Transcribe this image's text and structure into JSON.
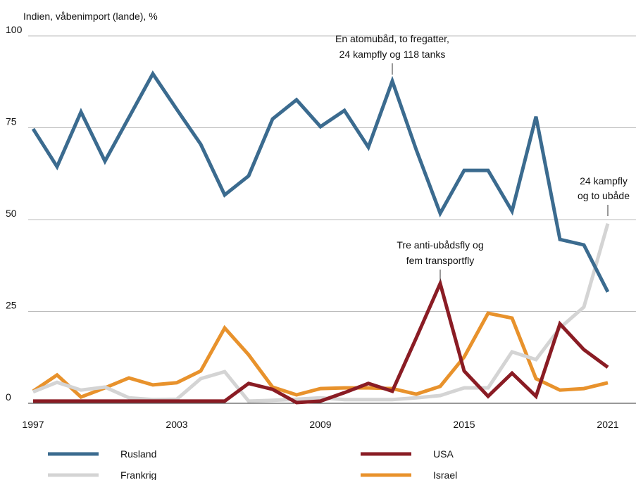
{
  "chart_data": {
    "type": "line",
    "y_axis_label": "Indien, våbenimport (lande), %",
    "x": [
      1997,
      1998,
      1999,
      2000,
      2001,
      2002,
      2003,
      2004,
      2005,
      2006,
      2007,
      2008,
      2009,
      2010,
      2011,
      2012,
      2013,
      2014,
      2015,
      2016,
      2017,
      2018,
      2019,
      2020,
      2021
    ],
    "xlim": [
      1997,
      2021
    ],
    "xticks": [
      1997,
      2003,
      2009,
      2015,
      2021
    ],
    "ylim": [
      0,
      100
    ],
    "yticks": [
      0,
      25,
      50,
      75,
      100
    ],
    "grid": true,
    "series": [
      {
        "name": "Rusland",
        "color": "#3b6b8f",
        "values": [
          74.7,
          64.4,
          79.3,
          65.9,
          77.8,
          89.7,
          80,
          70.5,
          56.7,
          61.9,
          77.4,
          82.6,
          75.3,
          79.7,
          69.7,
          87.7,
          69,
          51.7,
          63.4,
          63.4,
          52.3,
          78,
          44.6,
          43.1,
          30.3
        ]
      },
      {
        "name": "USA",
        "color": "#8a1c24",
        "values": [
          0.6,
          0.6,
          0.6,
          0.6,
          0.6,
          0.6,
          0.6,
          0.6,
          0.6,
          5.4,
          3.8,
          0.2,
          0.6,
          2.9,
          5.4,
          3.3,
          17.8,
          32.6,
          8.8,
          1.9,
          8.2,
          1.9,
          21.6,
          14.6,
          9.8
        ]
      },
      {
        "name": "Frankrig",
        "color": "#d4d4d4",
        "values": [
          3.1,
          5.7,
          3.6,
          4.4,
          1.5,
          1,
          1.1,
          6.7,
          8.6,
          0.6,
          0.8,
          1.1,
          1.5,
          1,
          1,
          1,
          1.5,
          2.1,
          4.2,
          4.2,
          14,
          11.9,
          20.5,
          26.2,
          48.9
        ]
      },
      {
        "name": "Israel",
        "color": "#e8922c",
        "values": [
          3.3,
          7.7,
          1.7,
          4.2,
          6.9,
          5,
          5.6,
          8.8,
          20.5,
          13.2,
          4.4,
          2.3,
          4,
          4.2,
          4.2,
          4,
          2.5,
          4.6,
          12.6,
          24.5,
          23.2,
          6.7,
          3.6,
          4,
          5.6
        ]
      }
    ],
    "annotations": [
      {
        "lines": [
          "En atomubåd, to fregatter,",
          "24 kampfly og 118 tanks"
        ],
        "x": 2012
      },
      {
        "lines": [
          "Tre anti-ubådsfly og",
          "fem transportfly"
        ],
        "x": 2014
      },
      {
        "lines": [
          "24 kampfly",
          "og to ubåde"
        ],
        "x": 2021
      }
    ]
  }
}
